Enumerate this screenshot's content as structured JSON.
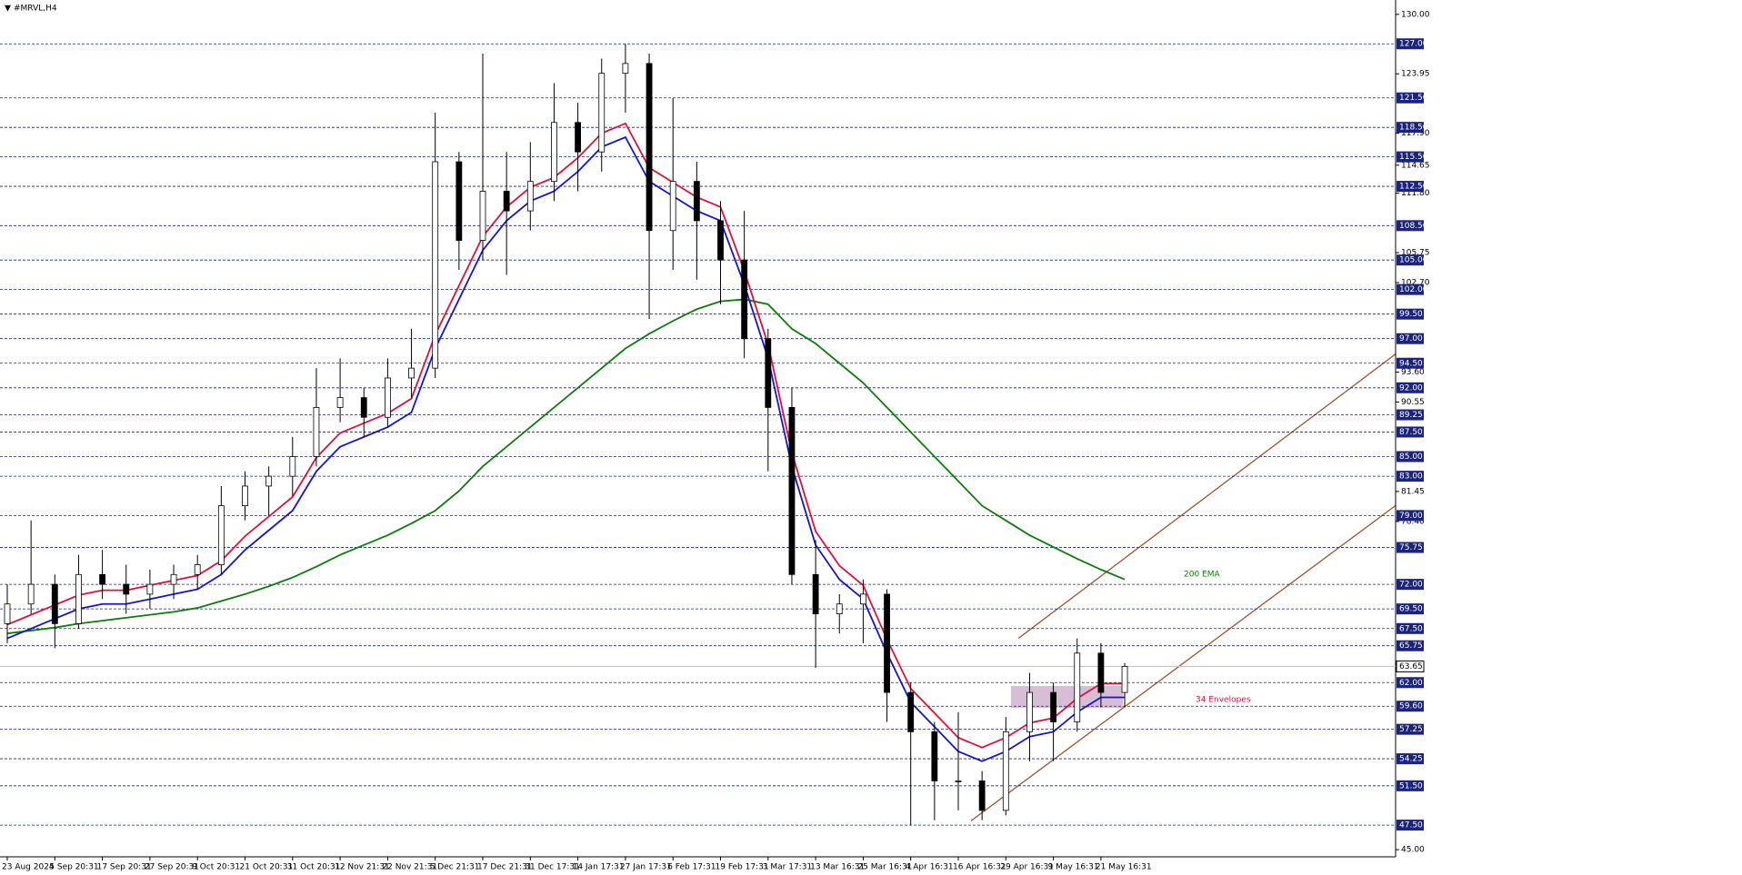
{
  "chart_data": {
    "type": "candlestick",
    "title": "#MRVL,H4",
    "categories": [
      "23 Aug 2024",
      null,
      "5 Sep 20:31",
      null,
      "17 Sep 20:31",
      null,
      "27 Sep 20:31",
      null,
      "9 Oct 20:31",
      null,
      "21 Oct 20:31",
      null,
      "31 Oct 20:31",
      null,
      "12 Nov 21:31",
      null,
      "22 Nov 21:31",
      null,
      "5 Dec 21:31",
      null,
      "17 Dec 21:31",
      null,
      "31 Dec 17:31",
      null,
      "14 Jan 17:31",
      null,
      "27 Jan 17:31",
      null,
      "6 Feb 17:31",
      null,
      "19 Feb 17:31",
      null,
      "3 Mar 17:31",
      null,
      "13 Mar 16:31",
      null,
      "25 Mar 16:31",
      null,
      "4 Apr 16:31",
      null,
      "16 Apr 16:31",
      null,
      "29 Apr 16:31",
      null,
      "9 May 16:31",
      null,
      "21 May 16:31",
      null
    ],
    "open": [
      68,
      70,
      72,
      68,
      73,
      72,
      71,
      72,
      73,
      74,
      80,
      82,
      83,
      85,
      90,
      91,
      89,
      93,
      94,
      115,
      107,
      112,
      110,
      113,
      119,
      116,
      124,
      125,
      108,
      113,
      109,
      105,
      97,
      90,
      73,
      69,
      70,
      71,
      61,
      57,
      52,
      52,
      49,
      57,
      61,
      58,
      65,
      61
    ],
    "high": [
      72,
      78.5,
      73,
      75,
      75.5,
      74,
      73.5,
      74,
      75,
      82,
      83.5,
      84,
      87,
      94,
      95,
      92,
      95,
      98,
      120,
      116,
      126,
      116,
      117,
      123,
      121,
      125.5,
      127,
      126,
      121.5,
      115,
      111,
      110,
      98,
      92,
      76.5,
      71,
      72.5,
      71.5,
      62,
      58,
      59,
      53,
      58.5,
      63,
      62,
      66.5,
      66,
      64
    ],
    "low": [
      66,
      69,
      65.5,
      67.5,
      70.5,
      69,
      69.5,
      70.5,
      71.5,
      73,
      78.5,
      79,
      81,
      84,
      88.5,
      87,
      88,
      91,
      93,
      104,
      105,
      103.5,
      108,
      111,
      112,
      114,
      120,
      99,
      104,
      103,
      100.5,
      95,
      83.5,
      72,
      63.5,
      67,
      66,
      58,
      47.5,
      48,
      49,
      48,
      48.5,
      54,
      54,
      57,
      59.5,
      59.5
    ],
    "close": [
      70,
      72,
      68,
      73,
      72,
      71,
      72,
      73,
      74,
      80,
      82,
      83,
      85,
      90,
      91,
      89,
      93,
      94,
      115,
      107,
      112,
      110,
      113,
      119,
      116,
      124,
      125,
      108,
      113,
      109,
      105,
      97,
      90,
      73,
      69,
      70,
      71,
      61,
      57,
      52,
      52,
      49,
      57,
      61,
      58,
      65,
      61,
      63.65
    ],
    "lines": [
      {
        "label": "200 EMA",
        "color": "#0b7d0b",
        "values": [
          67,
          67.3,
          67.6,
          68,
          68.3,
          68.6,
          68.9,
          69.2,
          69.6,
          70.3,
          71,
          71.8,
          72.7,
          73.8,
          75,
          76,
          77,
          78.2,
          79.5,
          81.5,
          84,
          86,
          88,
          90,
          92,
          94,
          96,
          97.5,
          98.8,
          100,
          100.8,
          101,
          100.5,
          98,
          96.5,
          94.5,
          92.5,
          90,
          87.5,
          85,
          82.5,
          80,
          78.5,
          77,
          75.8,
          74.6,
          73.5,
          72.5
        ]
      },
      {
        "label": "34 Envelopes",
        "color": "#e0103c",
        "values": [
          67.9,
          68.9,
          69.9,
          70.9,
          71.4,
          71.4,
          71.9,
          72.4,
          72.9,
          74.4,
          76.9,
          78.9,
          80.9,
          84.9,
          87.4,
          88.4,
          89.4,
          90.9,
          97.4,
          102.4,
          107.4,
          110.4,
          112.4,
          113.4,
          115.4,
          117.9,
          118.9,
          114.4,
          112.9,
          111.4,
          110.4,
          103.9,
          96.4,
          85.4,
          77.4,
          73.9,
          71.9,
          66.4,
          61.4,
          58.9,
          56.4,
          55.4,
          56.4,
          57.9,
          58.4,
          60.4,
          61.9,
          61.9
        ]
      },
      {
        "color": "#1414d2",
        "values": [
          66.5,
          67.5,
          68.5,
          69.5,
          70,
          70,
          70.5,
          71,
          71.5,
          73,
          75.5,
          77.5,
          79.5,
          83.5,
          86,
          87,
          88,
          89.5,
          96,
          101,
          106,
          109,
          111,
          112,
          114,
          116.5,
          117.5,
          113,
          111.5,
          110,
          109,
          102.5,
          95,
          84,
          76,
          72.5,
          70.5,
          65,
          60,
          57.5,
          55,
          54,
          55,
          56.5,
          57,
          59,
          60.5,
          60.5
        ]
      }
    ],
    "ylim": [
      44.55,
      131.46
    ],
    "yticks": [
      {
        "value": 130,
        "label": "130.00"
      },
      {
        "value": 123.95,
        "label": "123.95"
      },
      {
        "value": 117.9,
        "label": "117.90"
      },
      {
        "value": 114.65,
        "label": "114.65"
      },
      {
        "value": 111.8,
        "label": "111.80"
      },
      {
        "value": 105.75,
        "label": "105.75"
      },
      {
        "value": 102.7,
        "label": "102.70"
      },
      {
        "value": 93.6,
        "label": "93.60"
      },
      {
        "value": 90.55,
        "label": "90.55"
      },
      {
        "value": 81.45,
        "label": "81.45"
      },
      {
        "value": 78.4,
        "label": "78.40"
      },
      {
        "value": 45,
        "label": "45.00"
      }
    ],
    "levels": [
      {
        "value": 127,
        "label": "127.00"
      },
      {
        "value": 121.5,
        "label": "121.50"
      },
      {
        "value": 118.5,
        "label": "118.50"
      },
      {
        "value": 115.5,
        "label": "115.50"
      },
      {
        "value": 112.5,
        "label": "112.50"
      },
      {
        "value": 108.5,
        "label": "108.50"
      },
      {
        "value": 105,
        "label": "105.00"
      },
      {
        "value": 102,
        "label": "102.00"
      },
      {
        "value": 99.5,
        "label": "99.50"
      },
      {
        "value": 97,
        "label": "97.00"
      },
      {
        "value": 94.5,
        "label": "94.50"
      },
      {
        "value": 92,
        "label": "92.00"
      },
      {
        "value": 89.25,
        "label": "89.25"
      },
      {
        "value": 87.5,
        "label": "87.50"
      },
      {
        "value": 85,
        "label": "85.00"
      },
      {
        "value": 83,
        "label": "83.00"
      },
      {
        "value": 79,
        "label": "79.00"
      },
      {
        "value": 75.75,
        "label": "75.75"
      },
      {
        "value": 72,
        "label": "72.00"
      },
      {
        "value": 69.5,
        "label": "69.50"
      },
      {
        "value": 67.5,
        "label": "67.50"
      },
      {
        "value": 65.75,
        "label": "65.75"
      },
      {
        "value": 62,
        "label": "62.00"
      },
      {
        "value": 59.6,
        "label": "59.60"
      },
      {
        "value": 57.25,
        "label": "57.25"
      },
      {
        "value": 54.25,
        "label": "54.25"
      },
      {
        "value": 51.5,
        "label": "51.50"
      },
      {
        "value": 47.5,
        "label": "47.50"
      }
    ],
    "current_price": {
      "value": 63.65,
      "label": "63.65"
    }
  }
}
